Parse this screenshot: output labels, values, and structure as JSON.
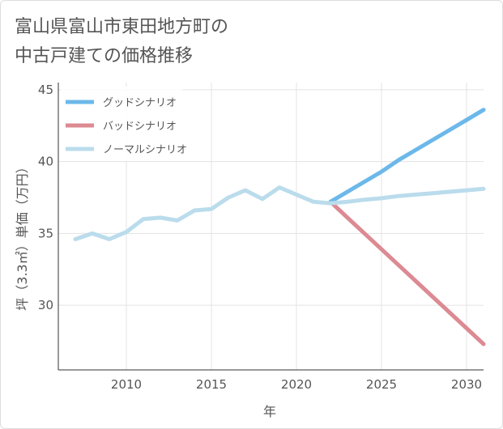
{
  "title_lines": [
    "富山県富山市東田地方町の",
    "中古戸建ての価格推移"
  ],
  "chart_data": {
    "type": "line",
    "xlabel": "年",
    "ylabel": "坪（3.3㎡）単価（万円）",
    "xlim": [
      2006,
      2031
    ],
    "ylim": [
      25.5,
      45.5
    ],
    "x_ticks": [
      2010,
      2015,
      2020,
      2025,
      2030
    ],
    "y_ticks": [
      30,
      35,
      40,
      45
    ],
    "grid": true,
    "legend_position": "top-left",
    "series": [
      {
        "name": "グッドシナリオ",
        "color": "#6cb8ea",
        "x": [
          2022,
          2023,
          2024,
          2025,
          2026,
          2027,
          2028,
          2029,
          2030,
          2031
        ],
        "y": [
          37.2,
          37.9,
          38.6,
          39.3,
          40.1,
          40.8,
          41.5,
          42.2,
          42.9,
          43.6
        ]
      },
      {
        "name": "バッドシナリオ",
        "color": "#dc8a93",
        "x": [
          2022,
          2023,
          2024,
          2025,
          2026,
          2027,
          2028,
          2029,
          2030,
          2031
        ],
        "y": [
          37.2,
          36.1,
          35.0,
          33.9,
          32.8,
          31.7,
          30.6,
          29.5,
          28.4,
          27.3
        ]
      },
      {
        "name": "ノーマルシナリオ",
        "color": "#badcec",
        "x": [
          2007,
          2008,
          2009,
          2010,
          2011,
          2012,
          2013,
          2014,
          2015,
          2016,
          2017,
          2018,
          2019,
          2020,
          2021,
          2022,
          2023,
          2024,
          2025,
          2026,
          2027,
          2028,
          2029,
          2030,
          2031
        ],
        "y": [
          34.6,
          35.0,
          34.6,
          35.1,
          36.0,
          36.1,
          35.9,
          36.6,
          36.7,
          37.5,
          38.0,
          37.4,
          38.2,
          37.7,
          37.2,
          37.1,
          37.2,
          37.35,
          37.45,
          37.6,
          37.7,
          37.8,
          37.9,
          38.0,
          38.1
        ]
      }
    ]
  }
}
